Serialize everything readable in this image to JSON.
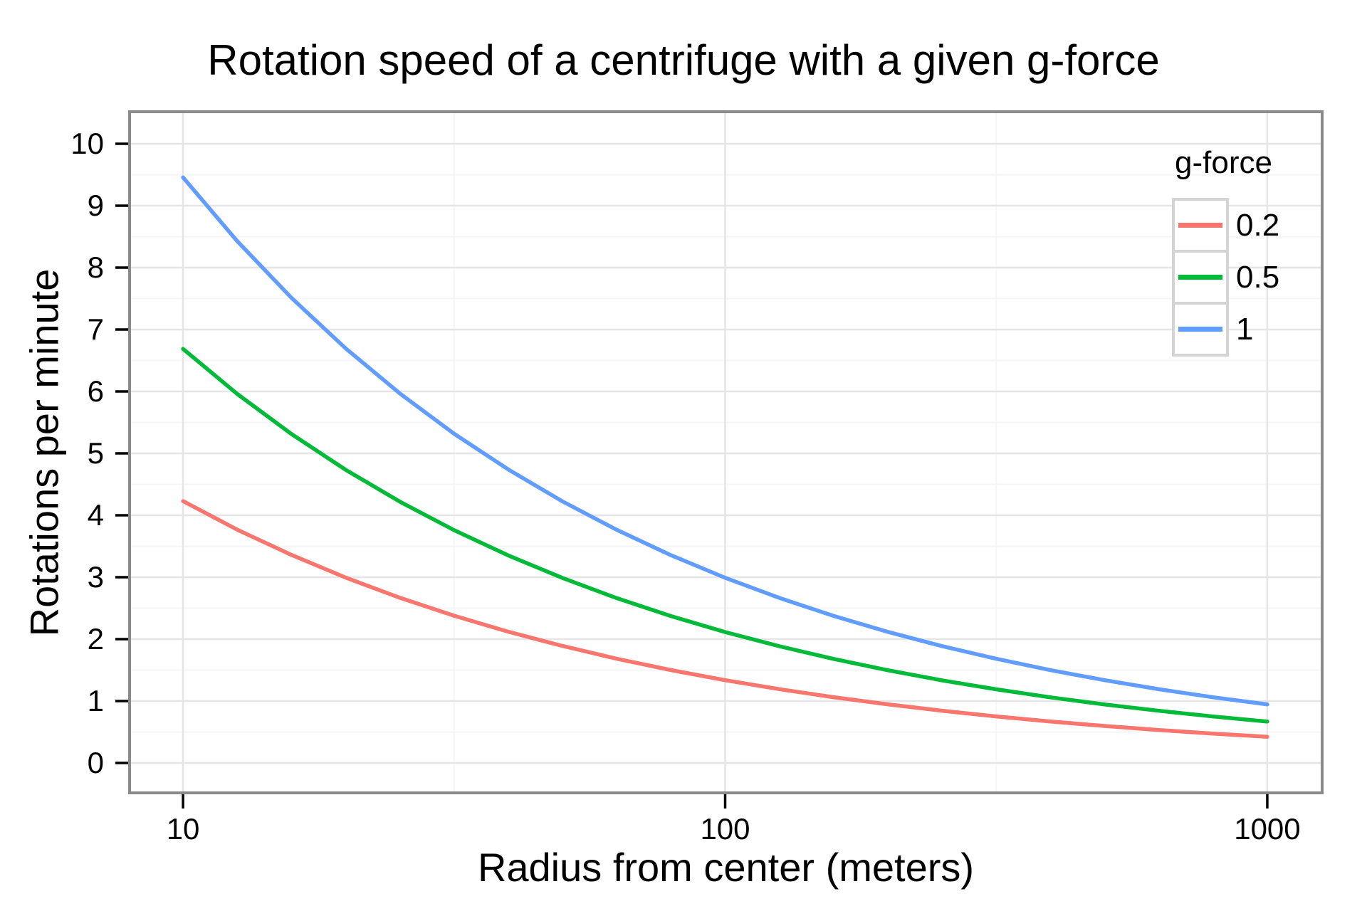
{
  "chart_data": {
    "type": "line",
    "title": "Rotation speed of a centrifuge with a given g-force",
    "xlabel": "Radius from center (meters)",
    "ylabel": "Rotations per minute",
    "x_scale": "log10",
    "grid": true,
    "x_ticks": [
      10,
      100,
      1000
    ],
    "x_minor": [
      31.62,
      316.2
    ],
    "y_ticks": [
      0,
      1,
      2,
      3,
      4,
      5,
      6,
      7,
      8,
      9,
      10
    ],
    "y_minor": [
      0.5,
      1.5,
      2.5,
      3.5,
      4.5,
      5.5,
      6.5,
      7.5,
      8.5,
      9.5
    ],
    "xlim_log": [
      0.9014,
      3.1012
    ],
    "ylim": [
      -0.483,
      10.517
    ],
    "legend": {
      "title": "g-force",
      "position": "top-right-inside"
    },
    "x": [
      10,
      12.59,
      15.85,
      19.95,
      25.12,
      31.62,
      39.81,
      50.12,
      63.1,
      79.43,
      100,
      125.9,
      158.5,
      199.5,
      251.2,
      316.2,
      398.1,
      501.2,
      631,
      794.3,
      1000
    ],
    "series": [
      {
        "name": "0.2",
        "color": "#F8766D",
        "y": [
          4.229,
          3.768,
          3.359,
          2.994,
          2.668,
          2.378,
          2.119,
          1.889,
          1.683,
          1.5,
          1.337,
          1.192,
          1.062,
          0.947,
          0.844,
          0.752,
          0.67,
          0.597,
          0.532,
          0.474,
          0.423
        ]
      },
      {
        "name": "0.5",
        "color": "#00BA38",
        "y": [
          6.687,
          5.959,
          5.312,
          4.734,
          4.219,
          3.76,
          3.351,
          2.987,
          2.662,
          2.372,
          2.114,
          1.885,
          1.68,
          1.497,
          1.334,
          1.189,
          1.06,
          0.945,
          0.842,
          0.75,
          0.669
        ]
      },
      {
        "name": "1",
        "color": "#619CFF",
        "y": [
          9.456,
          8.427,
          7.511,
          6.695,
          5.966,
          5.317,
          4.74,
          4.224,
          3.765,
          3.355,
          2.99,
          2.665,
          2.375,
          2.117,
          1.887,
          1.682,
          1.499,
          1.336,
          1.19,
          1.061,
          0.946
        ]
      }
    ]
  },
  "style": {
    "grid_major_color": "#E5E5E5",
    "grid_minor_color": "#F6F6F6",
    "panel_border_color": "#8A8A8A",
    "tick_color": "#000000",
    "text_color": "#000000",
    "legend_key_border": "#D4D4D4",
    "background": "#FFFFFF"
  }
}
